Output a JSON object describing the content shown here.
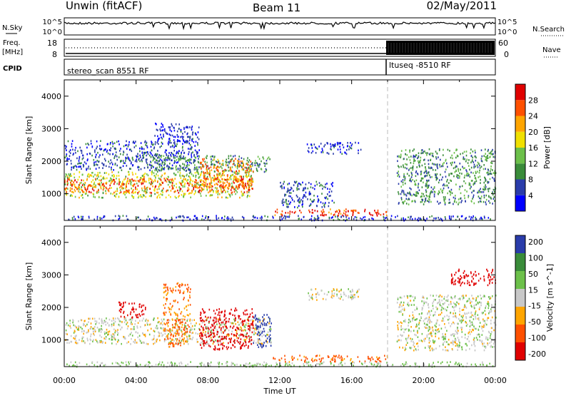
{
  "header": {
    "station": "Unwin (fitACF)",
    "beam": "Beam 11",
    "date": "02/May/2011"
  },
  "left_labels": {
    "nsky": "N.Sky",
    "freq": "Freq.",
    "mhz": "[MHz]",
    "cpid": "CPID"
  },
  "right_labels": {
    "nsearch": "N.Search",
    "nave": "Nave"
  },
  "noise_panel": {
    "tick_top": "10^5",
    "tick_bottom": "10^0"
  },
  "freq_panel": {
    "left_ticks": [
      "18",
      "8"
    ],
    "right_ticks": [
      "60",
      "0"
    ]
  },
  "cpid_panel": {
    "mode1": "stereo_scan 8551 RF",
    "mode2": "ltuseq -8510 RF",
    "switch_time": "18:00"
  },
  "colors": {
    "power": [
      "#0000ff",
      "#2a3caa",
      "#3a8c3a",
      "#6cc04a",
      "#f0e000",
      "#ffa500",
      "#ff5000",
      "#e00000"
    ],
    "velocity": [
      "#e00000",
      "#ff5000",
      "#ffa500",
      "#c8c8c8",
      "#6cc04a",
      "#3a8c3a",
      "#2a3caa"
    ],
    "ground_scatter": "#b4b4b4"
  },
  "chart_data": [
    {
      "type": "heatmap",
      "name": "power",
      "ylabel": "Slant Range [km]",
      "xlabel": "Time UT",
      "x_ticks": [
        "00:00",
        "04:00",
        "08:00",
        "12:00",
        "16:00",
        "20:00",
        "00:00"
      ],
      "xlim_hours": [
        0,
        24
      ],
      "ylim": [
        180,
        4500
      ],
      "y_ticks": [
        1000,
        2000,
        3000,
        4000
      ],
      "colorbar": {
        "label": "Power [dB]",
        "ticks": [
          4,
          8,
          12,
          16,
          20,
          24,
          28
        ],
        "range": [
          0,
          32
        ]
      },
      "regions": [
        {
          "t0": 0.0,
          "t1": 10.5,
          "r0": 900,
          "r1": 1700,
          "level": 16
        },
        {
          "t0": 0.0,
          "t1": 10.5,
          "r0": 1050,
          "r1": 1500,
          "level": 26
        },
        {
          "t0": 0.0,
          "t1": 7.5,
          "r0": 1750,
          "r1": 2650,
          "level": 6
        },
        {
          "t0": 4.5,
          "t1": 11.5,
          "r0": 1700,
          "r1": 2200,
          "level": 10
        },
        {
          "t0": 7.5,
          "t1": 10.5,
          "r0": 1200,
          "r1": 2100,
          "level": 24
        },
        {
          "t0": 5.0,
          "t1": 7.5,
          "r0": 2600,
          "r1": 3200,
          "level": 4
        },
        {
          "t0": 12.0,
          "t1": 15.0,
          "r0": 600,
          "r1": 1400,
          "level": 6
        },
        {
          "t0": 11.5,
          "t1": 18.0,
          "r0": 350,
          "r1": 550,
          "level": 28
        },
        {
          "t0": 13.5,
          "t1": 16.5,
          "r0": 2250,
          "r1": 2600,
          "level": 4
        },
        {
          "t0": 18.5,
          "t1": 24.0,
          "r0": 700,
          "r1": 2400,
          "level": 10
        },
        {
          "t0": 0.0,
          "t1": 24.0,
          "r0": 200,
          "r1": 350,
          "level": 5
        }
      ]
    },
    {
      "type": "heatmap",
      "name": "velocity",
      "ylabel": "Slant Range [km]",
      "xlabel": "Time UT",
      "x_ticks": [
        "00:00",
        "04:00",
        "08:00",
        "12:00",
        "16:00",
        "20:00",
        "00:00"
      ],
      "xlim_hours": [
        0,
        24
      ],
      "ylim": [
        180,
        4500
      ],
      "y_ticks": [
        1000,
        2000,
        3000,
        4000
      ],
      "colorbar": {
        "label": "Velocity [m s^-1]",
        "ticks": [
          200,
          100,
          50,
          15,
          -15,
          -50,
          -100,
          -200
        ]
      },
      "regions": [
        {
          "t0": 0.0,
          "t1": 11.5,
          "r0": 900,
          "r1": 1700,
          "value": 0
        },
        {
          "t0": 3.0,
          "t1": 4.5,
          "r0": 1700,
          "r1": 2200,
          "value": -180
        },
        {
          "t0": 7.5,
          "t1": 10.5,
          "r0": 700,
          "r1": 2000,
          "value": -200
        },
        {
          "t0": 5.5,
          "t1": 7.0,
          "r0": 800,
          "r1": 2800,
          "value": -60
        },
        {
          "t0": 10.5,
          "t1": 11.5,
          "r0": 800,
          "r1": 1800,
          "value": 180
        },
        {
          "t0": 13.5,
          "t1": 16.5,
          "r0": 2250,
          "r1": 2600,
          "value": 0
        },
        {
          "t0": 11.5,
          "t1": 18.0,
          "r0": 350,
          "r1": 550,
          "value": -70
        },
        {
          "t0": 18.5,
          "t1": 24.0,
          "r0": 700,
          "r1": 2400,
          "value": 5
        },
        {
          "t0": 21.5,
          "t1": 24.0,
          "r0": 2700,
          "r1": 3200,
          "value": -200
        },
        {
          "t0": 0.0,
          "t1": 24.0,
          "r0": 200,
          "r1": 350,
          "value": 20
        }
      ]
    }
  ]
}
